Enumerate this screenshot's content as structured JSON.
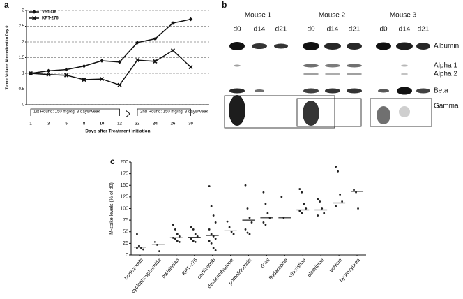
{
  "panel_labels": [
    "a",
    "b",
    "c"
  ],
  "chart_data": [
    {
      "type": "line",
      "categories": [
        "1",
        "3",
        "5",
        "8",
        "10",
        "12",
        "22",
        "24",
        "26",
        "30"
      ],
      "series": [
        {
          "name": "Vehicle",
          "color": "#111111",
          "marker": "diamond",
          "values": [
            1,
            1.08,
            1.12,
            1.23,
            1.4,
            1.36,
            1.98,
            2.1,
            2.6,
            2.72
          ]
        },
        {
          "name": "KPT-276",
          "color": "#111111",
          "marker": "x",
          "values": [
            1,
            0.96,
            0.94,
            0.8,
            0.82,
            0.63,
            1.42,
            1.38,
            1.73,
            1.2
          ]
        }
      ],
      "ylim": [
        0,
        3
      ],
      "yticks": [
        0,
        0.5,
        1,
        1.5,
        2,
        2.5,
        3
      ],
      "grid": true,
      "legend": "top-left",
      "y_label": "Tumor Volume Normalized to Day 0",
      "x_label": "Days after Treatment Initiation",
      "annotations": [
        "1st Round: 150 mg/kg, 3 days/week",
        "2nd Round: 150 mg/kg, 3 days/week"
      ]
    },
    {
      "type": "strip",
      "categories": [
        "bortezomib",
        "cyclophosphamide",
        "melphalan",
        "KPT-276",
        "carfilzomib",
        "dexamethasone",
        "pomalidomide",
        "doxil",
        "fludarabine",
        "vincristine",
        "cladribine",
        "vehicle",
        "hydroxyurea"
      ],
      "points": [
        [
          45,
          20,
          15,
          12,
          15,
          18
        ],
        [
          28,
          22,
          8
        ],
        [
          65,
          55,
          45,
          40,
          37,
          35,
          30,
          28
        ],
        [
          60,
          55,
          45,
          40,
          35,
          30,
          28
        ],
        [
          148,
          105,
          85,
          70,
          55,
          45,
          40,
          35,
          30,
          25,
          15,
          10
        ],
        [
          72,
          60,
          50,
          45
        ],
        [
          150,
          100,
          80,
          70,
          55,
          48,
          45
        ],
        [
          135,
          110,
          90,
          80,
          70,
          65
        ],
        [
          125,
          80
        ],
        [
          142,
          135,
          110,
          100,
          95,
          90
        ],
        [
          120,
          115,
          100,
          90,
          85
        ],
        [
          190,
          180,
          130,
          115,
          105
        ],
        [
          140,
          135,
          100
        ]
      ],
      "medians": [
        17,
        22,
        37,
        38,
        42,
        52,
        75,
        80,
        80,
        97,
        97,
        112,
        137
      ],
      "color": "#222222",
      "ylim": [
        0,
        200
      ],
      "yticks": [
        0,
        25,
        50,
        75,
        100,
        125,
        150,
        175,
        200
      ],
      "y_label": "M-spike levels (% of d0)"
    }
  ],
  "gel": {
    "mice": [
      "Mouse 1",
      "Mouse 2",
      "Mouse 3"
    ],
    "lanes": [
      "d0",
      "d14",
      "d21"
    ],
    "bands": [
      "Albumin",
      "Alpha 1",
      "Alpha 2",
      "Beta",
      "Gamma"
    ]
  }
}
